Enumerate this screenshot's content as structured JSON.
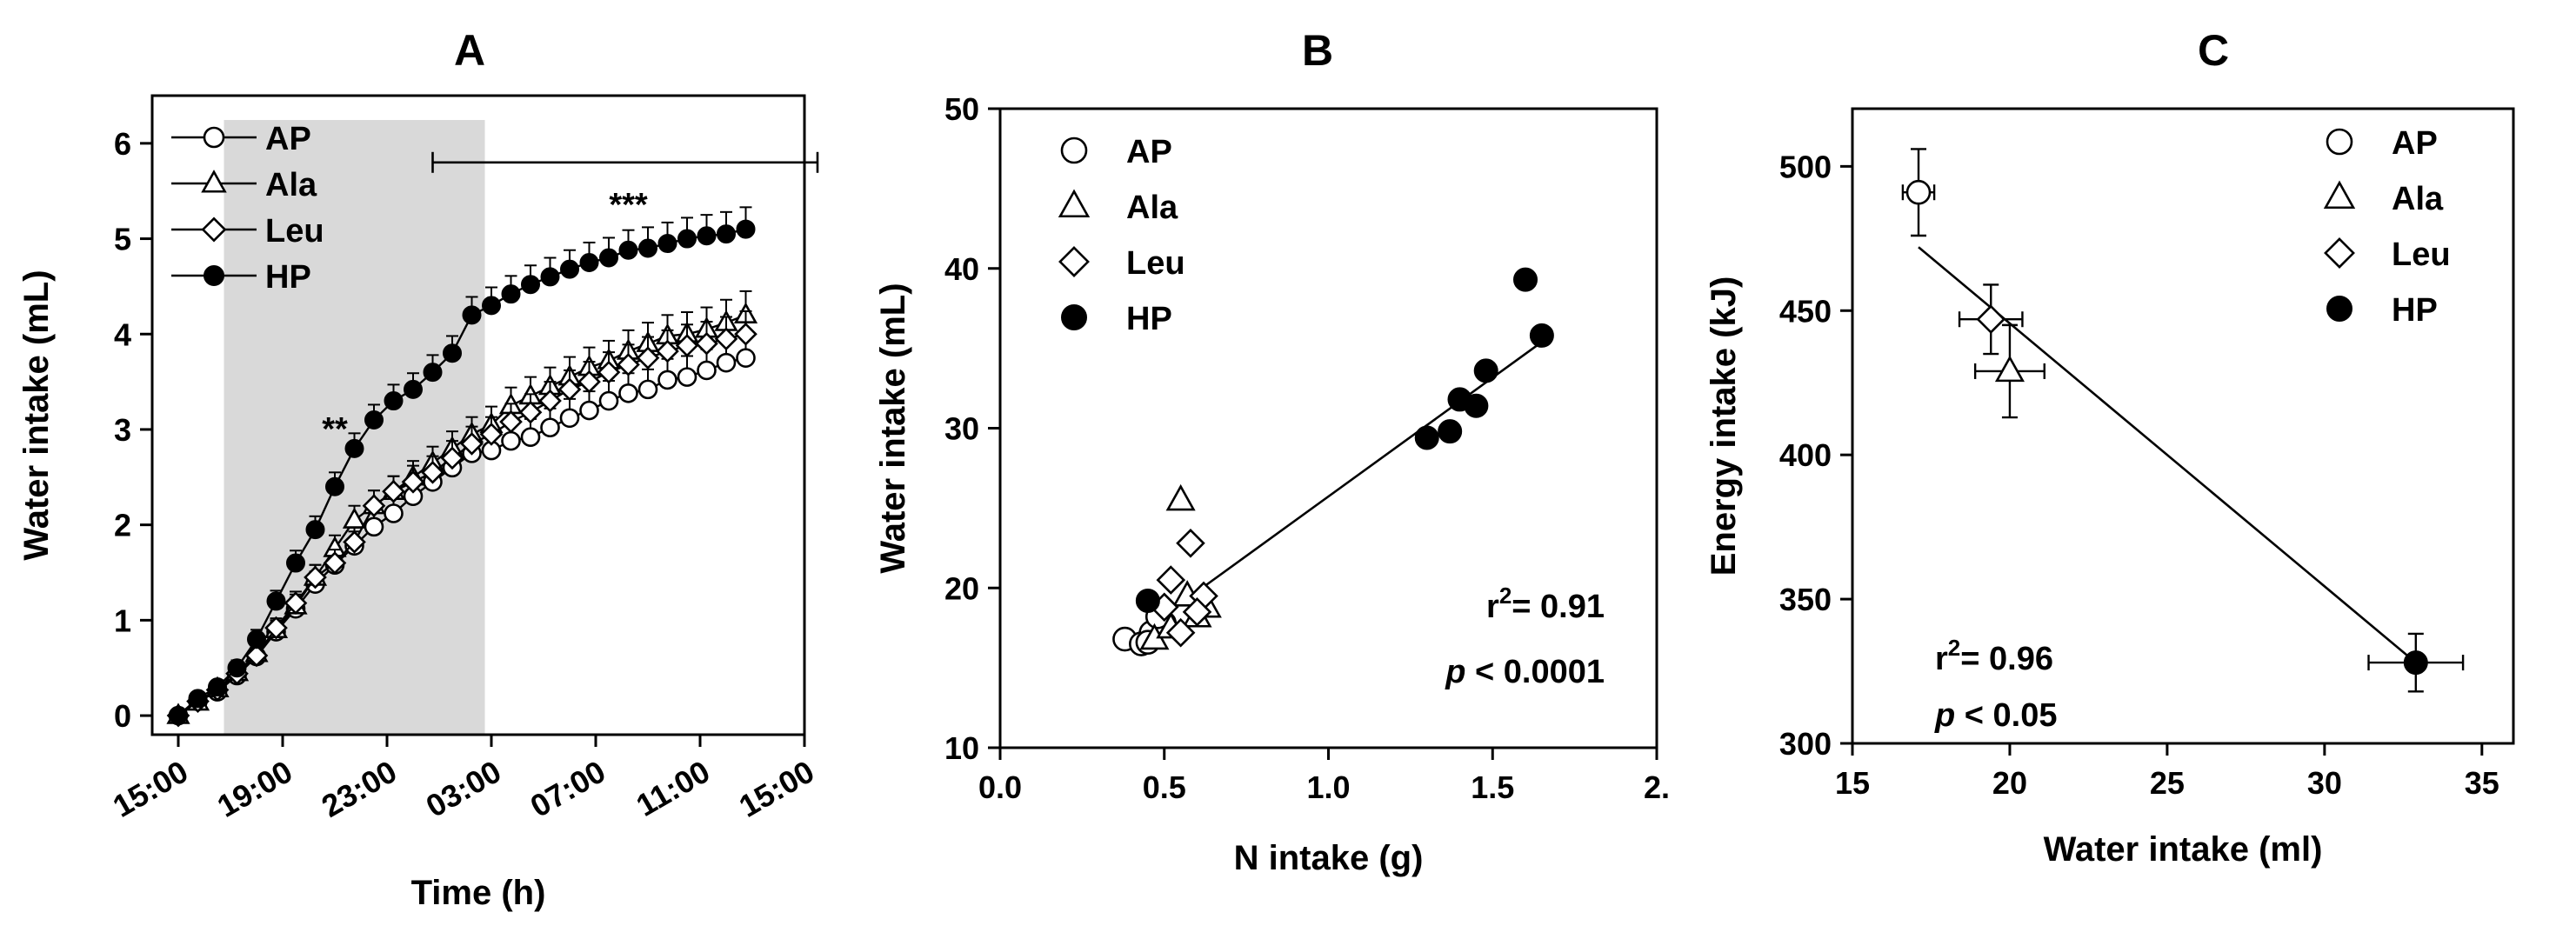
{
  "chart_data": [
    {
      "panel": "A",
      "type": "line",
      "title": "A",
      "xlabel": "Time (h)",
      "ylabel": "Water intake (mL)",
      "xlim": [
        -2,
        48
      ],
      "ylim": [
        -0.2,
        6.5
      ],
      "xticks": [
        0,
        8,
        16,
        24,
        32,
        40,
        48
      ],
      "xticklabels": [
        "15:00",
        "19:00",
        "23:00",
        "03:00",
        "07:00",
        "11:00",
        "15:00"
      ],
      "yticks": [
        0,
        1,
        2,
        3,
        4,
        5,
        6
      ],
      "yticklabels": [
        "0",
        "1",
        "2",
        "3",
        "4",
        "5",
        "6"
      ],
      "shaded_period": [
        3.5,
        23.5
      ],
      "x": [
        0,
        1.5,
        3,
        4.5,
        6,
        7.5,
        9,
        10.5,
        12,
        13.5,
        15,
        16.5,
        18,
        19.5,
        21,
        22.5,
        24,
        25.5,
        27,
        28.5,
        30,
        31.5,
        33,
        34.5,
        36,
        37.5,
        39,
        40.5,
        42,
        43.5
      ],
      "series": [
        {
          "name": "AP",
          "marker": "circle-open",
          "values": [
            0.0,
            0.15,
            0.25,
            0.42,
            0.62,
            0.88,
            1.12,
            1.38,
            1.58,
            1.78,
            1.98,
            2.12,
            2.3,
            2.45,
            2.6,
            2.75,
            2.78,
            2.88,
            2.92,
            3.02,
            3.12,
            3.2,
            3.3,
            3.38,
            3.42,
            3.52,
            3.55,
            3.62,
            3.7,
            3.75
          ],
          "errors": [
            0.05,
            0.06,
            0.07,
            0.08,
            0.09,
            0.1,
            0.12,
            0.13,
            0.15,
            0.15,
            0.16,
            0.16,
            0.17,
            0.17,
            0.18,
            0.18,
            0.18,
            0.19,
            0.19,
            0.2,
            0.2,
            0.2,
            0.21,
            0.21,
            0.21,
            0.22,
            0.22,
            0.22,
            0.23,
            0.23
          ]
        },
        {
          "name": "Ala",
          "marker": "triangle-open",
          "values": [
            0.0,
            0.14,
            0.28,
            0.45,
            0.65,
            0.9,
            1.15,
            1.45,
            1.75,
            2.05,
            2.2,
            2.35,
            2.5,
            2.65,
            2.8,
            2.95,
            3.05,
            3.25,
            3.35,
            3.45,
            3.55,
            3.65,
            3.72,
            3.82,
            3.9,
            3.98,
            4.0,
            4.05,
            4.12,
            4.2
          ],
          "errors": [
            0.05,
            0.06,
            0.07,
            0.08,
            0.09,
            0.1,
            0.12,
            0.13,
            0.14,
            0.15,
            0.16,
            0.16,
            0.17,
            0.17,
            0.18,
            0.18,
            0.19,
            0.19,
            0.2,
            0.2,
            0.21,
            0.21,
            0.21,
            0.22,
            0.22,
            0.22,
            0.23,
            0.23,
            0.24,
            0.25
          ]
        },
        {
          "name": "Leu",
          "marker": "diamond-open",
          "values": [
            0.0,
            0.15,
            0.27,
            0.44,
            0.63,
            0.92,
            1.18,
            1.45,
            1.6,
            1.82,
            2.2,
            2.35,
            2.45,
            2.55,
            2.7,
            2.85,
            2.95,
            3.08,
            3.18,
            3.3,
            3.42,
            3.5,
            3.6,
            3.68,
            3.75,
            3.82,
            3.88,
            3.9,
            3.95,
            4.0
          ],
          "errors": [
            0.05,
            0.06,
            0.07,
            0.08,
            0.09,
            0.1,
            0.12,
            0.13,
            0.14,
            0.15,
            0.16,
            0.16,
            0.17,
            0.17,
            0.18,
            0.18,
            0.18,
            0.19,
            0.19,
            0.2,
            0.2,
            0.21,
            0.21,
            0.21,
            0.22,
            0.22,
            0.22,
            0.23,
            0.23,
            0.24
          ]
        },
        {
          "name": "HP",
          "marker": "circle-filled",
          "values": [
            0.0,
            0.18,
            0.3,
            0.5,
            0.8,
            1.2,
            1.6,
            1.95,
            2.4,
            2.8,
            3.1,
            3.3,
            3.42,
            3.6,
            3.8,
            4.2,
            4.3,
            4.42,
            4.52,
            4.6,
            4.68,
            4.75,
            4.8,
            4.88,
            4.9,
            4.95,
            5.0,
            5.03,
            5.05,
            5.1
          ],
          "errors": [
            0.05,
            0.06,
            0.07,
            0.08,
            0.1,
            0.11,
            0.13,
            0.14,
            0.15,
            0.16,
            0.16,
            0.17,
            0.17,
            0.18,
            0.18,
            0.19,
            0.19,
            0.19,
            0.2,
            0.2,
            0.2,
            0.21,
            0.21,
            0.21,
            0.22,
            0.22,
            0.22,
            0.22,
            0.23,
            0.23
          ]
        }
      ],
      "annotations": [
        {
          "text": "**",
          "x": 12,
          "y": 3.0
        },
        {
          "text": "***",
          "x": 34.5,
          "y": 5.35
        }
      ],
      "significance_bracket": {
        "x_start": 19.5,
        "x_end": 49,
        "y": 5.8
      },
      "legend": {
        "placement": "top-left",
        "entries": [
          "AP",
          "Ala",
          "Leu",
          "HP"
        ]
      }
    },
    {
      "panel": "B",
      "type": "scatter",
      "title": "B",
      "xlabel": "N intake (g)",
      "ylabel": "Water intake (mL)",
      "xlim": [
        0.0,
        2.0
      ],
      "ylim": [
        10,
        50
      ],
      "xticks": [
        0.0,
        0.5,
        1.0,
        1.5,
        2.0
      ],
      "xticklabels": [
        "0.0",
        "0.5",
        "1.0",
        "1.5",
        "2."
      ],
      "yticks": [
        10,
        20,
        30,
        40,
        50
      ],
      "yticklabels": [
        "10",
        "20",
        "30",
        "40",
        "50"
      ],
      "series": [
        {
          "name": "AP",
          "marker": "circle-open",
          "x": [
            0.38,
            0.43,
            0.46,
            0.5,
            0.48,
            0.45
          ],
          "y": [
            16.8,
            16.5,
            17.2,
            17.8,
            18.2,
            16.6
          ]
        },
        {
          "name": "Ala",
          "marker": "triangle-open",
          "x": [
            0.55,
            0.47,
            0.6,
            0.63,
            0.52,
            0.57
          ],
          "y": [
            25.5,
            16.8,
            18.2,
            18.8,
            17.5,
            19.5
          ]
        },
        {
          "name": "Leu",
          "marker": "diamond-open",
          "x": [
            0.52,
            0.58,
            0.62,
            0.55,
            0.6,
            0.5
          ],
          "y": [
            20.5,
            22.8,
            19.5,
            17.2,
            18.5,
            18.8
          ]
        },
        {
          "name": "HP",
          "marker": "circle-filled",
          "x": [
            0.45,
            1.3,
            1.37,
            1.4,
            1.45,
            1.48,
            1.6,
            1.65
          ],
          "y": [
            19.2,
            29.4,
            29.8,
            31.8,
            31.4,
            33.6,
            39.3,
            35.8
          ]
        }
      ],
      "fit_line": {
        "x": [
          0.38,
          1.65
        ],
        "y": [
          16.5,
          35.4
        ]
      },
      "stats": {
        "r2_prefix": "r",
        "r2_sup": "2",
        "r2_value": "= 0.91",
        "p_symbol": "p",
        "p_value": "< 0.0001"
      },
      "legend": {
        "placement": "top-left",
        "entries": [
          "AP",
          "Ala",
          "Leu",
          "HP"
        ]
      }
    },
    {
      "panel": "C",
      "type": "scatter",
      "title": "C",
      "xlabel": "Water intake (ml)",
      "ylabel": "Energy intake (kJ)",
      "xlim": [
        15,
        36
      ],
      "ylim": [
        300,
        520
      ],
      "xticks": [
        15,
        20,
        25,
        30,
        35
      ],
      "xticklabels": [
        "15",
        "20",
        "25",
        "30",
        "35"
      ],
      "yticks": [
        300,
        350,
        400,
        450,
        500
      ],
      "yticklabels": [
        "300",
        "350",
        "400",
        "450",
        "500"
      ],
      "series": [
        {
          "name": "AP",
          "marker": "circle-open",
          "x": [
            17.1
          ],
          "y": [
            491
          ],
          "xerr": [
            0.5
          ],
          "yerr": [
            15
          ]
        },
        {
          "name": "Ala",
          "marker": "triangle-open",
          "x": [
            20.0
          ],
          "y": [
            429
          ],
          "xerr": [
            1.1
          ],
          "yerr": [
            16
          ]
        },
        {
          "name": "Leu",
          "marker": "diamond-open",
          "x": [
            19.4
          ],
          "y": [
            447
          ],
          "xerr": [
            1.0
          ],
          "yerr": [
            12
          ]
        },
        {
          "name": "HP",
          "marker": "circle-filled",
          "x": [
            32.9
          ],
          "y": [
            328
          ],
          "xerr": [
            1.5
          ],
          "yerr": [
            10
          ]
        }
      ],
      "fit_line": {
        "x": [
          17.1,
          32.9
        ],
        "y": [
          472,
          328
        ]
      },
      "stats": {
        "r2_prefix": "r",
        "r2_sup": "2",
        "r2_value": "= 0.96",
        "p_symbol": "p",
        "p_value": "< 0.05"
      },
      "legend": {
        "placement": "top-right",
        "entries": [
          "AP",
          "Ala",
          "Leu",
          "HP"
        ]
      }
    }
  ]
}
